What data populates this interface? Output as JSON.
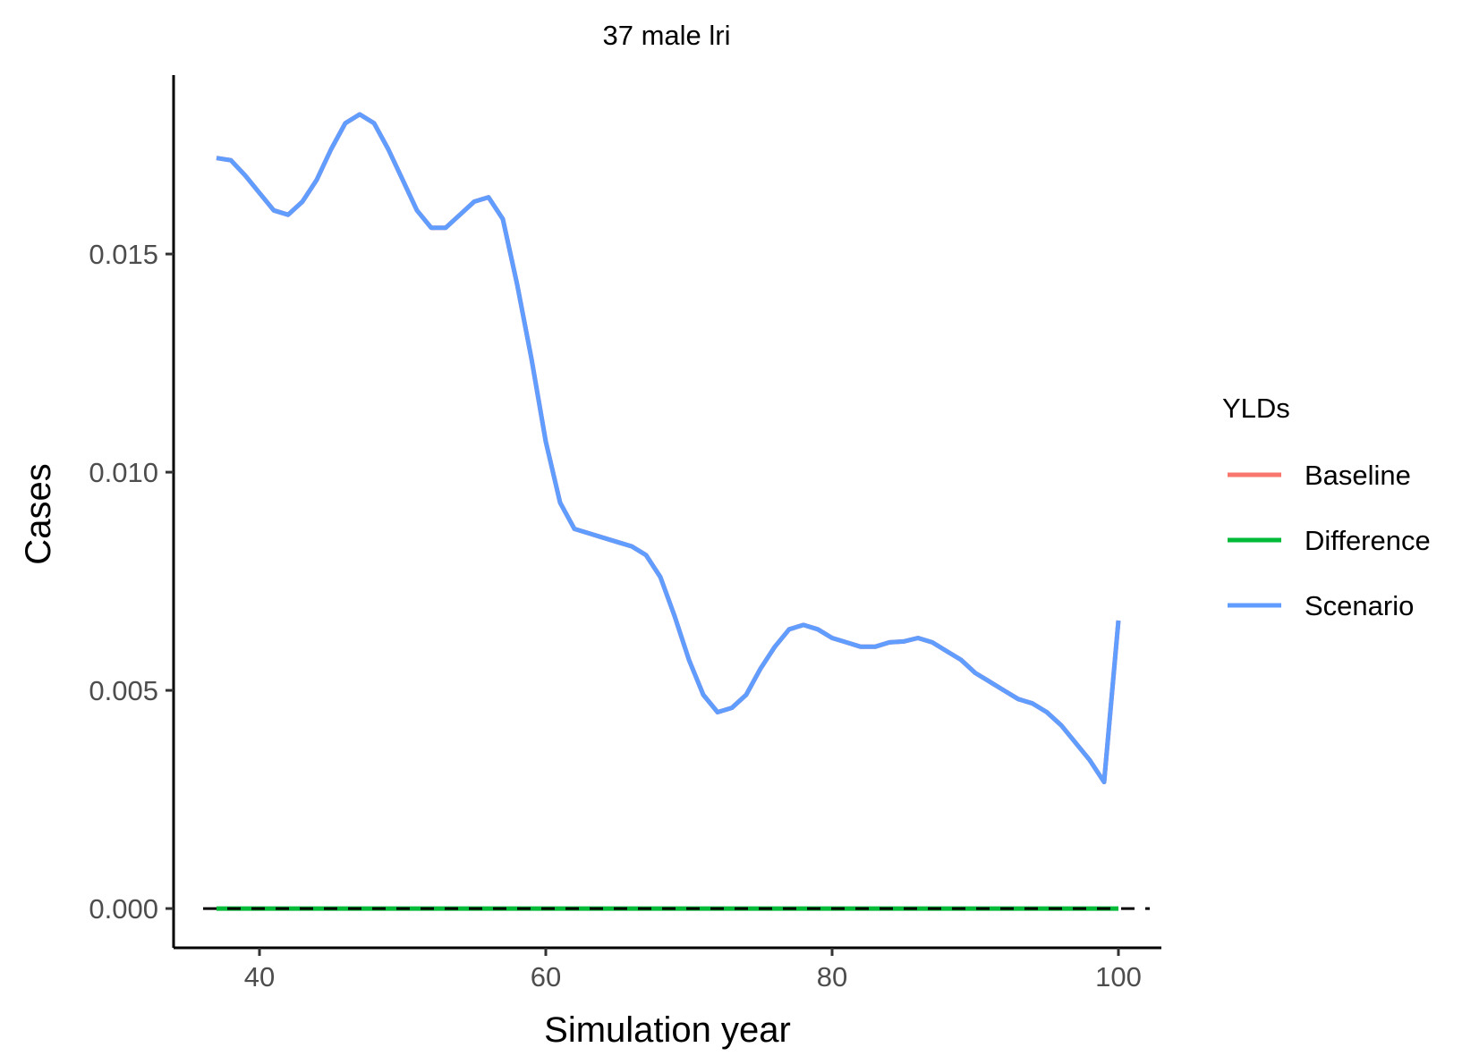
{
  "chart_data": {
    "type": "line",
    "title": "37 male lri",
    "xlabel": "Simulation year",
    "ylabel": "Cases",
    "xlim": [
      34,
      103
    ],
    "ylim": [
      -0.0009,
      0.0191
    ],
    "x_ticks": [
      40,
      60,
      80,
      100
    ],
    "y_ticks": [
      0.0,
      0.005,
      0.01,
      0.015
    ],
    "x_tick_labels": [
      "40",
      "60",
      "80",
      "100"
    ],
    "y_tick_labels": [
      "0.000",
      "0.005",
      "0.010",
      "0.015"
    ],
    "grid": false,
    "reference_line": {
      "y": 0,
      "style": "dashed",
      "color": "#000000"
    },
    "legend": {
      "title": "YLDs",
      "position": "right",
      "entries": [
        "Baseline",
        "Difference",
        "Scenario"
      ]
    },
    "series": [
      {
        "name": "Baseline",
        "color": "#F8766D",
        "x": [
          37,
          38,
          39,
          40,
          41,
          42,
          43,
          44,
          45,
          46,
          47,
          48,
          49,
          50,
          51,
          52,
          53,
          54,
          55,
          56,
          57,
          58,
          59,
          60,
          61,
          62,
          63,
          64,
          65,
          66,
          67,
          68,
          69,
          70,
          71,
          72,
          73,
          74,
          75,
          76,
          77,
          78,
          79,
          80,
          81,
          82,
          83,
          84,
          85,
          86,
          87,
          88,
          89,
          90,
          91,
          92,
          93,
          94,
          95,
          96,
          97,
          98,
          99,
          100
        ],
        "y": [
          0.0172,
          0.01715,
          0.0168,
          0.0164,
          0.016,
          0.0159,
          0.0162,
          0.0167,
          0.0174,
          0.018,
          0.0182,
          0.018,
          0.0174,
          0.0167,
          0.016,
          0.0156,
          0.0156,
          0.0159,
          0.0162,
          0.0163,
          0.0158,
          0.0143,
          0.0126,
          0.0107,
          0.0093,
          0.0087,
          0.0086,
          0.0085,
          0.0084,
          0.0083,
          0.0081,
          0.0076,
          0.0067,
          0.0057,
          0.0049,
          0.0045,
          0.0046,
          0.0049,
          0.0055,
          0.006,
          0.0064,
          0.0065,
          0.0064,
          0.0062,
          0.0061,
          0.006,
          0.006,
          0.0061,
          0.00612,
          0.0062,
          0.0061,
          0.0059,
          0.0057,
          0.0054,
          0.0052,
          0.005,
          0.0048,
          0.0047,
          0.0045,
          0.0042,
          0.0038,
          0.0034,
          0.0029,
          0.0066
        ]
      },
      {
        "name": "Difference",
        "color": "#00BA38",
        "x": [
          37,
          38,
          39,
          40,
          41,
          42,
          43,
          44,
          45,
          46,
          47,
          48,
          49,
          50,
          51,
          52,
          53,
          54,
          55,
          56,
          57,
          58,
          59,
          60,
          61,
          62,
          63,
          64,
          65,
          66,
          67,
          68,
          69,
          70,
          71,
          72,
          73,
          74,
          75,
          76,
          77,
          78,
          79,
          80,
          81,
          82,
          83,
          84,
          85,
          86,
          87,
          88,
          89,
          90,
          91,
          92,
          93,
          94,
          95,
          96,
          97,
          98,
          99,
          100
        ],
        "y": [
          0,
          0,
          0,
          0,
          0,
          0,
          0,
          0,
          0,
          0,
          0,
          0,
          0,
          0,
          0,
          0,
          0,
          0,
          0,
          0,
          0,
          0,
          0,
          0,
          0,
          0,
          0,
          0,
          0,
          0,
          0,
          0,
          0,
          0,
          0,
          0,
          0,
          0,
          0,
          0,
          0,
          0,
          0,
          0,
          0,
          0,
          0,
          0,
          0,
          0,
          0,
          0,
          0,
          0,
          0,
          0,
          0,
          0,
          0,
          0,
          0,
          0,
          0,
          0
        ]
      },
      {
        "name": "Scenario",
        "color": "#619CFF",
        "x": [
          37,
          38,
          39,
          40,
          41,
          42,
          43,
          44,
          45,
          46,
          47,
          48,
          49,
          50,
          51,
          52,
          53,
          54,
          55,
          56,
          57,
          58,
          59,
          60,
          61,
          62,
          63,
          64,
          65,
          66,
          67,
          68,
          69,
          70,
          71,
          72,
          73,
          74,
          75,
          76,
          77,
          78,
          79,
          80,
          81,
          82,
          83,
          84,
          85,
          86,
          87,
          88,
          89,
          90,
          91,
          92,
          93,
          94,
          95,
          96,
          97,
          98,
          99,
          100
        ],
        "y": [
          0.0172,
          0.01715,
          0.0168,
          0.0164,
          0.016,
          0.0159,
          0.0162,
          0.0167,
          0.0174,
          0.018,
          0.0182,
          0.018,
          0.0174,
          0.0167,
          0.016,
          0.0156,
          0.0156,
          0.0159,
          0.0162,
          0.0163,
          0.0158,
          0.0143,
          0.0126,
          0.0107,
          0.0093,
          0.0087,
          0.0086,
          0.0085,
          0.0084,
          0.0083,
          0.0081,
          0.0076,
          0.0067,
          0.0057,
          0.0049,
          0.0045,
          0.0046,
          0.0049,
          0.0055,
          0.006,
          0.0064,
          0.0065,
          0.0064,
          0.0062,
          0.0061,
          0.006,
          0.006,
          0.0061,
          0.00612,
          0.0062,
          0.0061,
          0.0059,
          0.0057,
          0.0054,
          0.0052,
          0.005,
          0.0048,
          0.0047,
          0.0045,
          0.0042,
          0.0038,
          0.0034,
          0.0029,
          0.0066
        ]
      }
    ]
  }
}
